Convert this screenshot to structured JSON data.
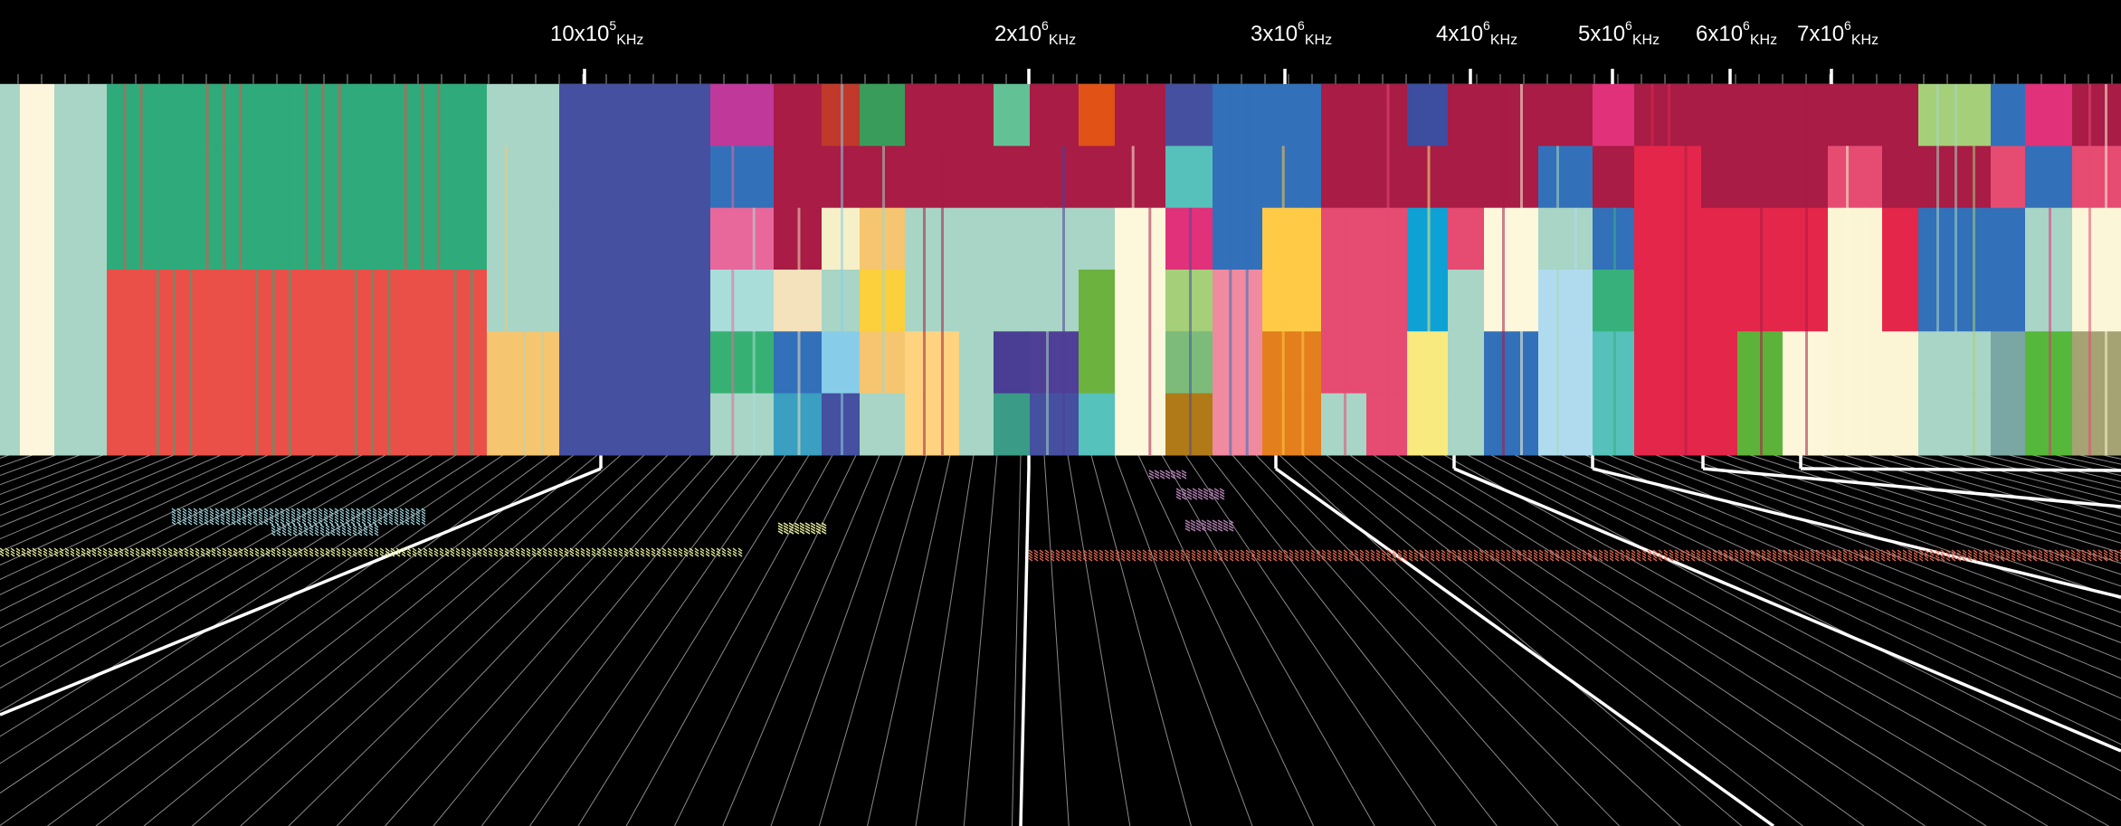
{
  "chart_data": {
    "type": "spectrum-allocation",
    "axis": {
      "scale": "linear",
      "unit": "KHz",
      "major_ticks": [
        {
          "value": 1000000,
          "mantissa": "10x10",
          "exp": "5",
          "unit": "KHz"
        },
        {
          "value": 2000000,
          "mantissa": "2x10",
          "exp": "6",
          "unit": "KHz"
        },
        {
          "value": 3000000,
          "mantissa": "3x10",
          "exp": "6",
          "unit": "KHz"
        },
        {
          "value": 4000000,
          "mantissa": "4x10",
          "exp": "6",
          "unit": "KHz"
        },
        {
          "value": 5000000,
          "mantissa": "5x10",
          "exp": "6",
          "unit": "KHz"
        },
        {
          "value": 6000000,
          "mantissa": "6x10",
          "exp": "6",
          "unit": "KHz"
        },
        {
          "value": 7000000,
          "mantissa": "7x10",
          "exp": "6",
          "unit": "KHz"
        }
      ]
    },
    "band_columns": [
      [
        "#a8d5c5"
      ],
      [
        "#fdf6dc"
      ],
      [
        "#a8d5c5"
      ],
      [
        "#2faa7b",
        "#2faa7b",
        "#2faa7b",
        "#ea5048",
        "#ea5048",
        "#ea5048"
      ],
      [
        "#a8d5c5",
        "#a8d5c5",
        "#a8d5c5",
        "#a8d5c5",
        "#f6c56f",
        "#f6c56f"
      ],
      [
        "#4650a0"
      ],
      [
        "#4650a0"
      ],
      [
        "#c0399a",
        "#3270b9",
        "#e8689b",
        "#a9ddd9",
        "#36b073",
        "#a8d5c5"
      ],
      [
        "#a81c46",
        "#a81c46",
        "#a81c46",
        "#f3e2bb",
        "#3270b9",
        "#3a9fc0"
      ],
      [
        "#c0392b",
        "#a81c46",
        "#f6f0c8",
        "#a8d5c5",
        "#87cdea",
        "#4650a0"
      ],
      [
        "#3a9c5a",
        "#a81c46",
        "#f6c56f",
        "#fbd03c",
        "#f6c56f",
        "#a8d5c5"
      ],
      [
        "#a81c46",
        "#a81c46",
        "#a8d5c5",
        "#a8d5c5",
        "#ffd37f",
        "#ffd37f"
      ],
      [
        "#a81c46",
        "#a81c46",
        "#a8d5c5",
        "#a8d5c5",
        "#a8d5c5",
        "#a8d5c5"
      ],
      [
        "#62c195",
        "#a81c46",
        "#a8d5c5",
        "#a8d5c5",
        "#493d94",
        "#3a9b86"
      ],
      [
        "#a81c46",
        "#a81c46",
        "#a8d5c5",
        "#a8d5c5",
        "#4f3f96",
        "#4650a0"
      ],
      [
        "#e05216",
        "#a81c46",
        "#a8d5c5",
        "#6cb23e",
        "#6cb23e",
        "#55c2bc"
      ],
      [
        "#a81c46",
        "#a81c46",
        "#fdf7dc",
        "#fdf7dc",
        "#fdf7dc",
        "#fdf7dc"
      ],
      [
        "#4650a0",
        "#56c1ba",
        "#e0317a",
        "#a5cf79",
        "#7cbb7a",
        "#b17a18"
      ],
      [
        "#3270b9",
        "#3270b9",
        "#3270b9",
        "#f08aa0",
        "#f08aa0",
        "#f08aa0"
      ],
      [
        "#3270b9",
        "#3270b9",
        "#ffcb47",
        "#ffcb47",
        "#e37f1c",
        "#e37f1c"
      ],
      [
        "#a81c46",
        "#a81c46",
        "#e64b72",
        "#e64b72",
        "#e64b72",
        "#a8d5c5"
      ],
      [
        "#a81c46",
        "#a81c46",
        "#e64b72",
        "#e64b72",
        "#e64b72",
        "#e64b72"
      ],
      [
        "#3d4da0",
        "#a81c46",
        "#0ea2d4",
        "#0ea2d4",
        "#f8ea7e",
        "#f8ea7e"
      ],
      [
        "#a81c46",
        "#a81c46",
        "#e64b72",
        "#a8d5c5",
        "#a8d5c5",
        "#a8d5c5"
      ],
      [
        "#a81c46",
        "#a81c46",
        "#fdf7dc",
        "#fdf7dc",
        "#3270b9",
        "#3270b9"
      ],
      [
        "#a81c46",
        "#3270b9",
        "#a8d5c5",
        "#b0dbee",
        "#b0dbee",
        "#b0dbee"
      ],
      [
        "#e0317a",
        "#a81c46",
        "#3270b9",
        "#37b07c",
        "#56c1ba",
        "#56c1ba"
      ],
      [
        "#a81c46",
        "#e4264a",
        "#e4264a",
        "#e4264a",
        "#e4264a",
        "#e4264a"
      ],
      [
        "#a81c46",
        "#a81c46",
        "#e4264a",
        "#e4264a",
        "#e4264a",
        "#e4264a"
      ],
      [
        "#a81c46",
        "#a81c46",
        "#e4264a",
        "#e4264a",
        "#5db33a",
        "#5db33a"
      ],
      [
        "#a81c46",
        "#a81c46",
        "#e4264a",
        "#e4264a",
        "#fdf6da",
        "#fdf6da"
      ],
      [
        "#a81c46",
        "#e64b72",
        "#fbf5d6",
        "#fbf5d6",
        "#fbf5d6",
        "#fbf5d6"
      ],
      [
        "#a81c46",
        "#a81c46",
        "#e4264a",
        "#e4264a",
        "#fbf5d6",
        "#fbf5d6"
      ],
      [
        "#a5cf79",
        "#a81c46",
        "#3270b9",
        "#3270b9",
        "#a8d5c5",
        "#a8d5c5"
      ],
      [
        "#3270b9",
        "#e64b72",
        "#3270b9",
        "#3270b9",
        "#7aa6a3",
        "#7aa6a3"
      ],
      [
        "#e0317a",
        "#3270b9",
        "#a8d5c5",
        "#a8d5c5",
        "#56b83a",
        "#56b83a"
      ],
      [
        "#a81c46",
        "#e64b72",
        "#fbf6d8",
        "#fbf6d8",
        "#a5a374",
        "#a5a374"
      ]
    ],
    "annotations": [
      {
        "color": "#9fd3dd",
        "series": "cyan-hatch"
      },
      {
        "color": "#e8ef9a",
        "series": "yellow-hatch"
      },
      {
        "color": "#ee6a55",
        "series": "red-hatch"
      },
      {
        "color": "#b27fb2",
        "series": "purple-hatch"
      }
    ]
  }
}
